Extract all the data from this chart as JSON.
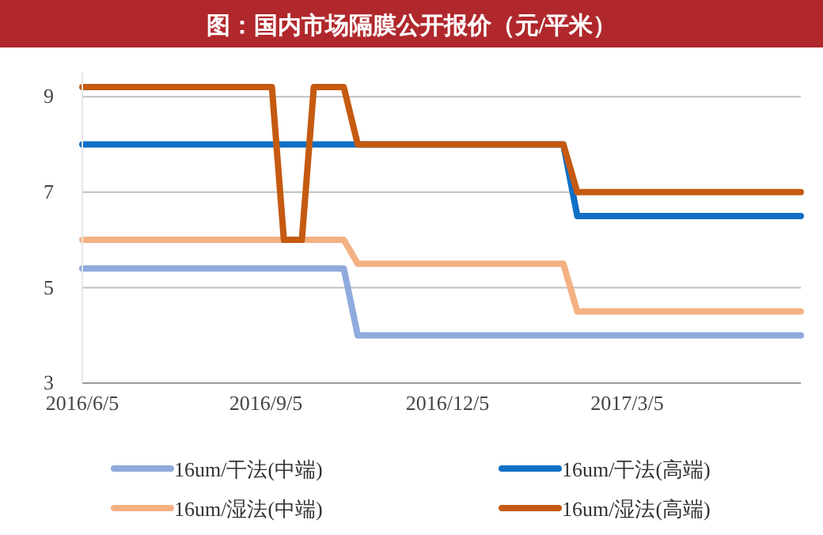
{
  "chart_data": {
    "type": "line",
    "title": "图：国内市场隔膜公开报价（元/平米）",
    "xlim": [
      "2016-06-05",
      "2017-05-31"
    ],
    "xticks": [
      {
        "value": "2016-06-05",
        "label": "2016/6/5"
      },
      {
        "value": "2016-09-05",
        "label": "2016/9/5"
      },
      {
        "value": "2016-12-05",
        "label": "2016/12/5"
      },
      {
        "value": "2017-03-05",
        "label": "2017/3/5"
      }
    ],
    "ylim": [
      3,
      9.5
    ],
    "yticks": [
      3,
      5,
      7,
      9
    ],
    "grid": "y",
    "legend": "bottom",
    "line_style": "solid",
    "marker": "none",
    "series": [
      {
        "name": "16um/干法(中端)",
        "color": "#8faadc",
        "x": [
          "2016-06-05",
          "2016-10-14",
          "2016-10-21",
          "2017-05-31"
        ],
        "values": [
          5.4,
          5.4,
          4,
          4
        ]
      },
      {
        "name": "16um/干法(高端)",
        "color": "#0f6fc6",
        "x": [
          "2016-06-05",
          "2017-02-01",
          "2017-02-08",
          "2017-05-31"
        ],
        "values": [
          8,
          8,
          6.5,
          6.5
        ]
      },
      {
        "name": "16um/湿法(中端)",
        "color": "#f4b183",
        "x": [
          "2016-06-05",
          "2016-10-14",
          "2016-10-21",
          "2017-02-01",
          "2017-02-08",
          "2017-05-31"
        ],
        "values": [
          6,
          6,
          5.5,
          5.5,
          4.5,
          4.5
        ]
      },
      {
        "name": "16um/湿法(高端)",
        "color": "#c55a11",
        "x": [
          "2016-06-05",
          "2016-09-08",
          "2016-09-14",
          "2016-09-23",
          "2016-09-29",
          "2016-10-14",
          "2016-10-21",
          "2017-02-01",
          "2017-02-08",
          "2017-05-31"
        ],
        "values": [
          9.2,
          9.2,
          6,
          6,
          9.2,
          9.2,
          8,
          8,
          7,
          7
        ]
      }
    ]
  }
}
